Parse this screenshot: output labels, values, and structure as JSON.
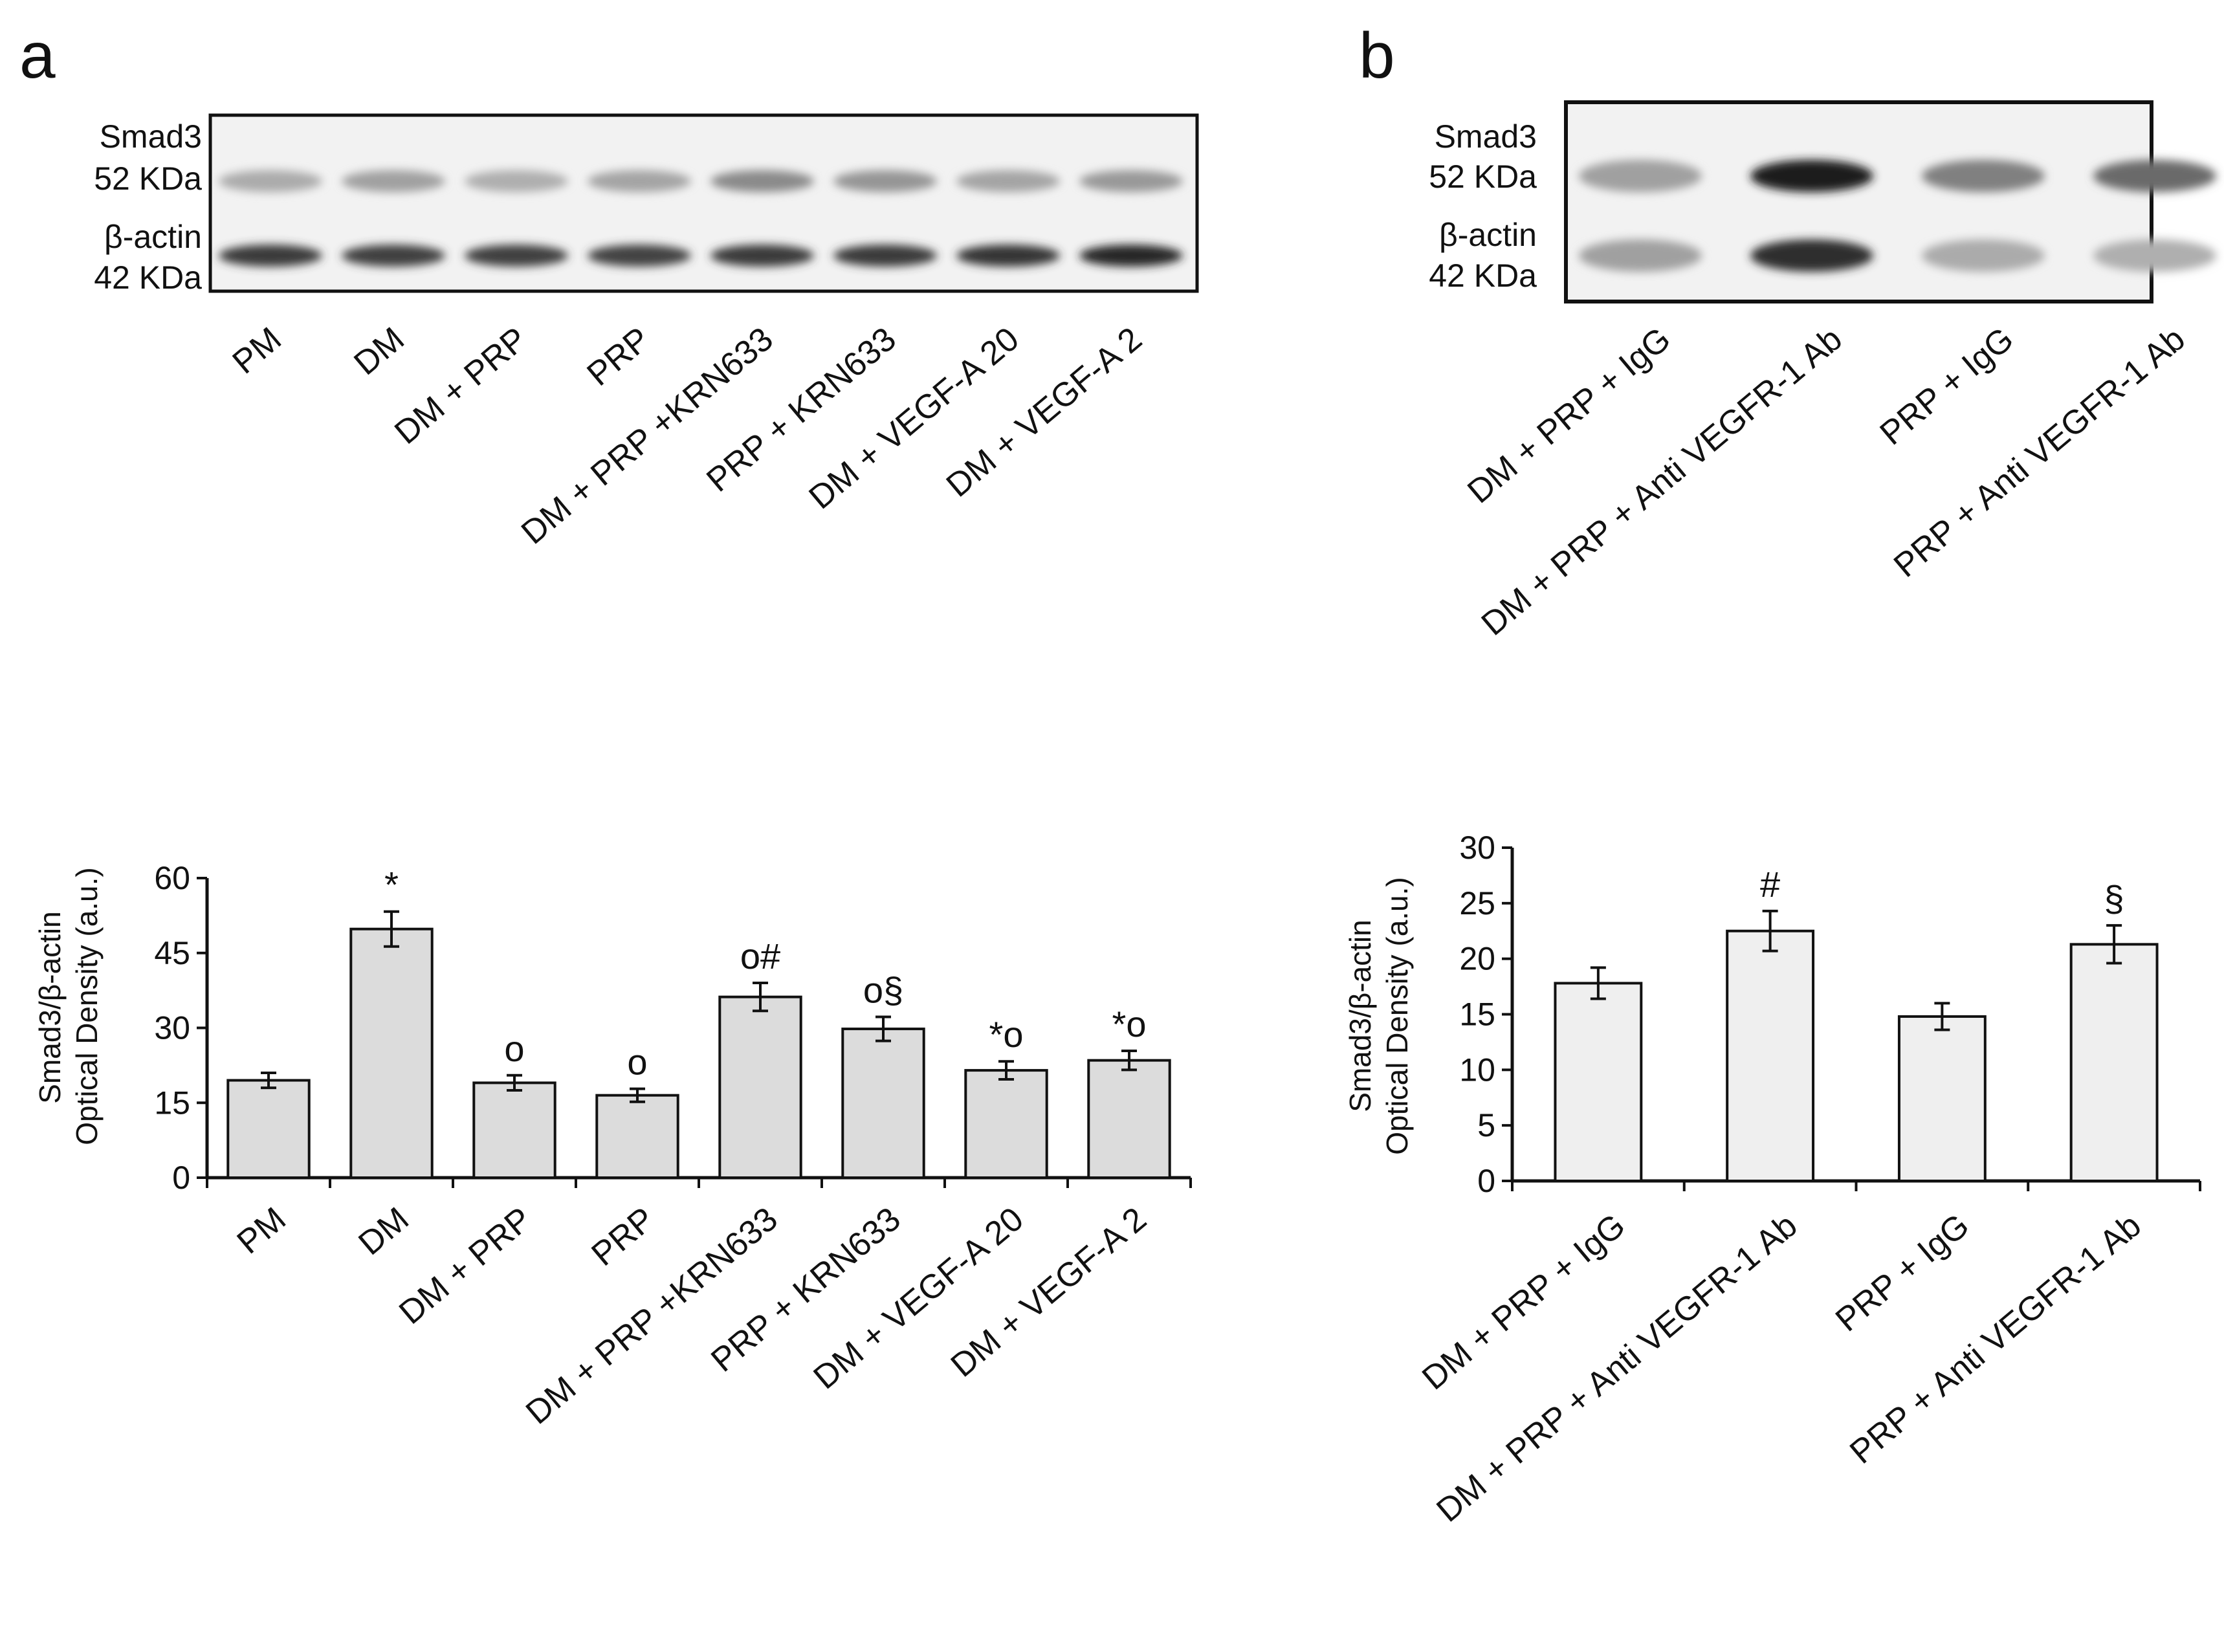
{
  "colors": {
    "bar_fill_a": "#dcdcdc",
    "bar_fill_b": "#efefef",
    "bar_stroke": "#111111",
    "blot_background": "#f2f2f2"
  },
  "panels": [
    {
      "letter": "a",
      "blot": {
        "markers": [
          "Smad3",
          "52 KDa",
          "β-actin",
          "42 KDa"
        ],
        "lanes": [
          "PM",
          "DM",
          "DM + PRP",
          "PRP",
          "DM + PRP +KRN633",
          "PRP + KRN633",
          "DM + VEGF-A 20",
          "DM + VEGF-A 2"
        ],
        "smad3_intensity": [
          0.3,
          0.35,
          0.28,
          0.33,
          0.45,
          0.4,
          0.33,
          0.38
        ],
        "actin_intensity": [
          0.82,
          0.8,
          0.8,
          0.78,
          0.82,
          0.82,
          0.85,
          0.92
        ]
      }
    },
    {
      "letter": "b",
      "blot": {
        "markers": [
          "Smad3",
          "52 KDa",
          "β-actin",
          "42 KDa"
        ],
        "lanes": [
          "DM + PRP + IgG",
          "DM + PRP + Anti VEGFR-1 Ab",
          "PRP + IgG",
          "PRP + Anti VEGFR-1 Ab"
        ],
        "smad3_intensity": [
          0.35,
          0.95,
          0.5,
          0.6
        ],
        "actin_intensity": [
          0.35,
          0.88,
          0.3,
          0.28
        ]
      }
    }
  ],
  "chart_data": [
    {
      "type": "bar",
      "categories": [
        "PM",
        "DM",
        "DM + PRP",
        "PRP",
        "DM + PRP +KRN633",
        "PRP + KRN633",
        "DM + VEGF-A 20",
        "DM + VEGF-A 2"
      ],
      "values": [
        19.5,
        49.8,
        19.0,
        16.5,
        36.2,
        29.8,
        21.5,
        23.5
      ],
      "errors": [
        1.5,
        3.5,
        1.5,
        1.3,
        2.8,
        2.4,
        1.8,
        1.9
      ],
      "annotations": [
        "",
        "*",
        "o",
        "o",
        "o#",
        "o§",
        "*o",
        "*o"
      ],
      "ylabel_lines": [
        "Smad3/β-actin",
        "Optical Density (a.u.)"
      ],
      "ylim": [
        0,
        60
      ],
      "yticks": [
        0,
        15,
        30,
        45,
        60
      ]
    },
    {
      "type": "bar",
      "categories": [
        "DM + PRP + IgG",
        "DM + PRP + Anti VEGFR-1 Ab",
        "PRP + IgG",
        "PRP + Anti VEGFR-1 Ab"
      ],
      "values": [
        17.8,
        22.5,
        14.8,
        21.3
      ],
      "errors": [
        1.4,
        1.8,
        1.2,
        1.7
      ],
      "annotations": [
        "",
        "#",
        "",
        "§"
      ],
      "ylabel_lines": [
        "Smad3/β-actin",
        "Optical Density (a.u.)"
      ],
      "ylim": [
        0,
        30
      ],
      "yticks": [
        0,
        5,
        10,
        15,
        20,
        25,
        30
      ]
    }
  ]
}
